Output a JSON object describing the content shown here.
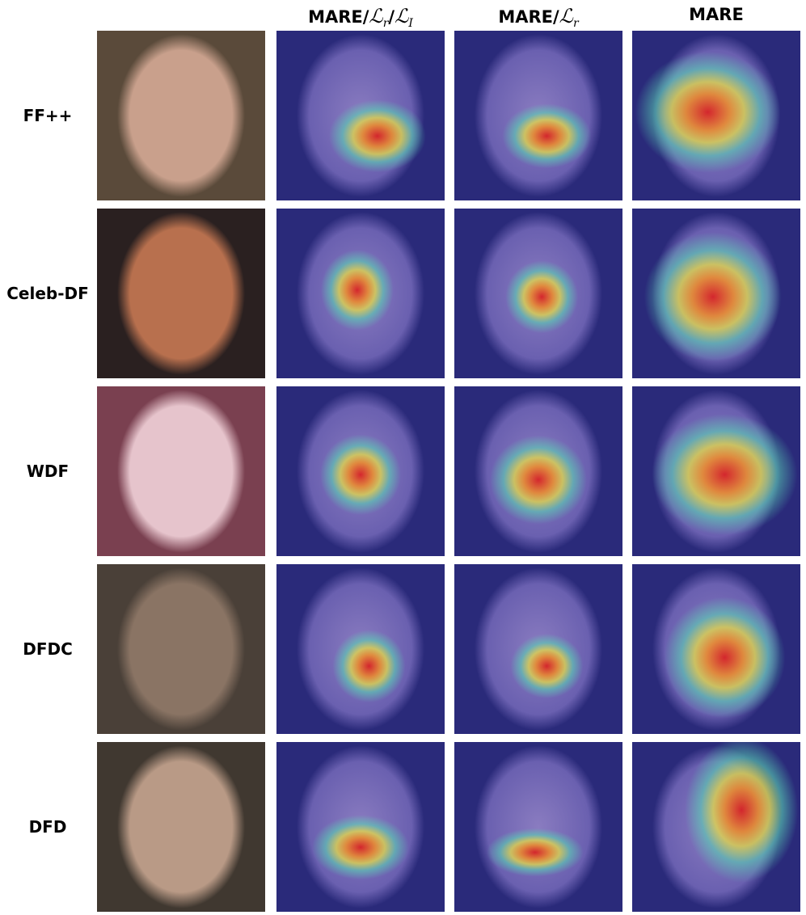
{
  "figure": {
    "columns": [
      {
        "parts": [
          {
            "t": "MARE/"
          },
          {
            "t": "ℒ",
            "sub": "r"
          },
          {
            "t": "/"
          },
          {
            "t": "ℒ",
            "sub": "I"
          }
        ]
      },
      {
        "parts": [
          {
            "t": "MARE/"
          },
          {
            "t": "ℒ",
            "sub": "r"
          }
        ]
      },
      {
        "parts": [
          {
            "t": "MARE"
          }
        ]
      }
    ],
    "rows": [
      "FF++",
      "Celeb-DF",
      "WDF",
      "DFDC",
      "DFD"
    ]
  }
}
